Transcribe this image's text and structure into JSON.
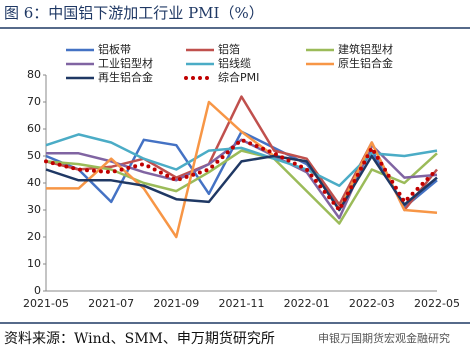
{
  "chart_data": {
    "type": "line",
    "title": "图 6：中国铝下游加工行业 PMI（%）",
    "source": "资料来源：Wind、SMM、申万期货研究所",
    "watermark": "申银万国期货宏观金融研究",
    "categories": [
      "2021-05",
      null,
      "2021-07",
      null,
      "2021-09",
      null,
      "2021-11",
      null,
      "2022-01",
      null,
      "2022-03",
      null,
      "2022-05"
    ],
    "series": [
      {
        "name": "铝板带",
        "color": "#4472c4",
        "values": [
          50,
          45,
          33,
          56,
          54,
          36,
          59,
          53,
          47,
          32,
          52,
          31,
          41
        ]
      },
      {
        "name": "铝箔",
        "color": "#c0504d",
        "values": [
          48,
          45,
          46,
          49,
          42,
          47,
          72,
          52,
          49,
          32,
          55,
          30,
          45
        ]
      },
      {
        "name": "建筑铝型材",
        "color": "#9bbb59",
        "values": [
          48,
          47,
          45,
          40,
          37,
          44,
          52,
          49,
          37,
          25,
          45,
          40,
          51
        ]
      },
      {
        "name": "工业铝型材",
        "color": "#8064a2",
        "values": [
          51,
          51,
          48,
          44,
          41,
          47,
          56,
          50,
          44,
          27,
          54,
          42,
          43
        ]
      },
      {
        "name": "铝线缆",
        "color": "#4bacc6",
        "values": [
          54,
          58,
          55,
          49,
          45,
          52,
          53,
          49,
          45,
          39,
          51,
          50,
          52
        ]
      },
      {
        "name": "原生铝合金",
        "color": "#f79646",
        "values": [
          38,
          38,
          49,
          38,
          20,
          70,
          59,
          50,
          48,
          30,
          55,
          30,
          29
        ]
      },
      {
        "name": "再生铝合金",
        "color": "#1f3864",
        "values": [
          45,
          41,
          41,
          39,
          34,
          33,
          48,
          50,
          48,
          30,
          50,
          32,
          42
        ]
      },
      {
        "name": "综合PMI",
        "color": "#c00000",
        "dotted": true,
        "values": [
          48,
          45,
          44,
          47,
          41,
          45,
          56,
          51,
          45,
          30,
          53,
          33,
          45
        ]
      }
    ],
    "ylim": [
      0,
      80
    ],
    "yticks": [
      0,
      10,
      20,
      30,
      40,
      50,
      60,
      70,
      80
    ],
    "grid": false
  }
}
